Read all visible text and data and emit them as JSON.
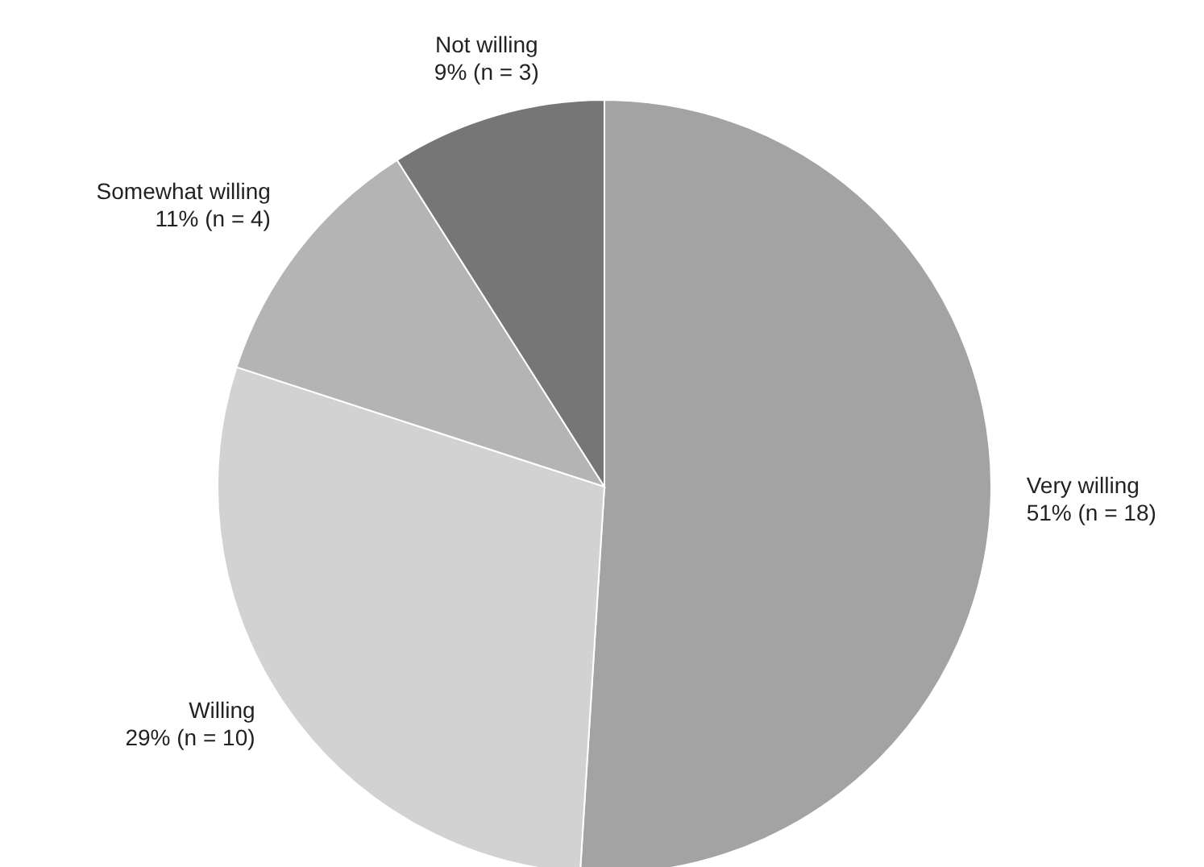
{
  "chart_data": {
    "type": "pie",
    "categories": [
      "Very willing",
      "Willing",
      "Somewhat willing",
      "Not willing"
    ],
    "values": [
      51,
      29,
      11,
      9
    ],
    "value_labels": [
      "51% (n = 18)",
      "29% (n = 10)",
      "11% (n = 4)",
      "9% (n = 3)"
    ],
    "colors": [
      "#a3a3a3",
      "#d2d2d2",
      "#b4b4b4",
      "#767676"
    ],
    "legend": false
  }
}
